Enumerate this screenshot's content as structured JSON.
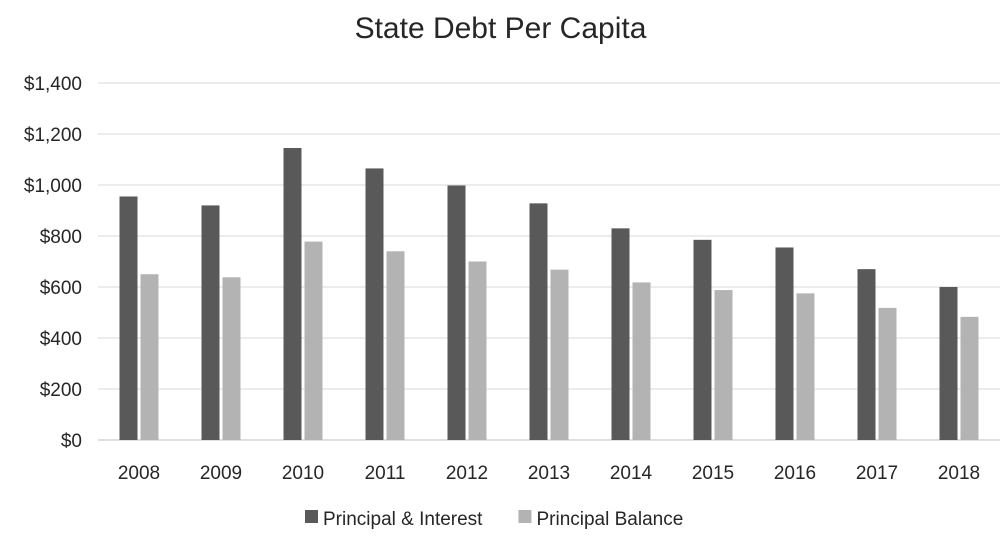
{
  "chart_data": {
    "type": "bar",
    "title": "State Debt Per Capita",
    "xlabel": "",
    "ylabel": "",
    "categories": [
      "2008",
      "2009",
      "2010",
      "2011",
      "2012",
      "2013",
      "2014",
      "2015",
      "2016",
      "2017",
      "2018"
    ],
    "series": [
      {
        "name": "Principal & Interest",
        "color": "#595959",
        "values": [
          955,
          920,
          1145,
          1065,
          998,
          928,
          830,
          785,
          755,
          670,
          600
        ]
      },
      {
        "name": "Principal Balance",
        "color": "#b3b3b3",
        "values": [
          650,
          638,
          778,
          740,
          700,
          668,
          618,
          588,
          575,
          518,
          483
        ]
      }
    ],
    "ylim": [
      0,
      1400
    ],
    "yticks": [
      0,
      200,
      400,
      600,
      800,
      1000,
      1200,
      1400
    ],
    "ytick_labels": [
      "$0",
      "$200",
      "$400",
      "$600",
      "$800",
      "$1,000",
      "$1,200",
      "$1,400"
    ],
    "grid": true,
    "legend_position": "bottom"
  }
}
